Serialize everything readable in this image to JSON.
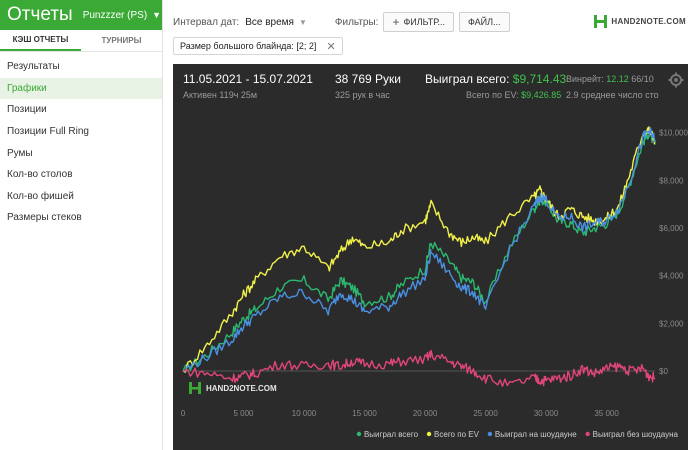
{
  "sidebar": {
    "title": "Отчеты",
    "account": "Punzzzer (PS)",
    "tabs": [
      "КЭШ ОТЧЕТЫ",
      "ТУРНИРЫ"
    ],
    "items": [
      "Результаты",
      "Графики",
      "Позиции",
      "Позиции Full Ring",
      "Румы",
      "Кол-во столов",
      "Кол-во фишей",
      "Размеры стеков"
    ],
    "active_index": 1
  },
  "toolbar": {
    "interval_label": "Интервал дат:",
    "interval_value": "Все время",
    "filters_label": "Фильтры:",
    "filter_button": "ФИЛЬТР...",
    "file_button": "ФАЙЛ...",
    "logo_text": "HAND2NOTE.COM",
    "chip": "Размер большого блайнда: [2; 2]"
  },
  "stats": {
    "date_range": "11.05.2021 - 15.07.2021",
    "active": "Активен 119ч 25м",
    "hands": "38 769 Руки",
    "hands_per_hour": "325 рук в час",
    "won_total_label": "Выиграл всего:",
    "won_total_value": "$9,714.43",
    "ev_label": "Всего по EV:",
    "ev_value": "$9,426.85",
    "winrate_label": "Винрейт:",
    "winrate_value": "12.12",
    "winrate_tail": "66/10",
    "avg_players": "2.9 среднее число сто"
  },
  "colors": {
    "brand": "#3ba935",
    "won": "#2bb870",
    "ev": "#f1f14a",
    "showdown": "#4a90e2",
    "non_showdown": "#e0457b"
  },
  "chart_data": {
    "type": "line",
    "x_ticks": [
      "0",
      "5 000",
      "10 000",
      "15 000",
      "20 000",
      "25 000",
      "30 000",
      "35 000"
    ],
    "y_ticks": [
      "$0",
      "$2,000",
      "$4,000",
      "$6,000",
      "$8,000",
      "$10,000"
    ],
    "xlim": [
      0,
      39000
    ],
    "ylim": [
      -1300,
      10700
    ],
    "watermark": "HAND2NOTE.COM",
    "x": [
      0,
      2000,
      4000,
      5000,
      6000,
      8000,
      10000,
      12000,
      13000,
      14000,
      15000,
      17000,
      18000,
      20000,
      20500,
      22000,
      23000,
      24000,
      25000,
      27000,
      29000,
      29500,
      30000,
      31000,
      32000,
      33000,
      34000,
      35000,
      36000,
      37000,
      38000,
      38500,
      39000
    ],
    "series": [
      {
        "name": "Выиграл всего",
        "values": [
          0,
          700,
          1600,
          2200,
          2600,
          3500,
          3800,
          3000,
          3800,
          3500,
          2900,
          3100,
          3600,
          4300,
          5400,
          4600,
          3900,
          3700,
          2900,
          5200,
          6800,
          7200,
          7100,
          6300,
          6200,
          5800,
          6000,
          6200,
          6700,
          8000,
          9600,
          10000,
          9500
        ]
      },
      {
        "name": "Всего по EV",
        "values": [
          0,
          1100,
          2400,
          3200,
          3800,
          4800,
          5200,
          4300,
          5000,
          5600,
          5200,
          5400,
          5900,
          6300,
          7000,
          5800,
          5400,
          5600,
          5400,
          6500,
          7300,
          7600,
          7200,
          6500,
          6800,
          6500,
          6300,
          6400,
          6900,
          8400,
          10000,
          10100,
          9700
        ]
      },
      {
        "name": "Выиграл на шоудауне",
        "values": [
          0,
          600,
          1300,
          1900,
          2300,
          3100,
          3300,
          2500,
          3300,
          3000,
          2500,
          2700,
          3200,
          3900,
          5000,
          4100,
          3500,
          3300,
          2600,
          5100,
          6900,
          7300,
          7200,
          6400,
          6500,
          6000,
          6200,
          6300,
          6800,
          8100,
          9800,
          10100,
          9700
        ]
      },
      {
        "name": "Выиграл без шоудауна",
        "values": [
          0,
          -100,
          -300,
          -200,
          -100,
          300,
          200,
          300,
          200,
          400,
          300,
          300,
          400,
          500,
          700,
          400,
          200,
          0,
          -300,
          -600,
          -300,
          -400,
          -400,
          -300,
          -200,
          100,
          -100,
          100,
          200,
          0,
          100,
          -200,
          -300
        ]
      }
    ],
    "legend_position": "bottom"
  }
}
